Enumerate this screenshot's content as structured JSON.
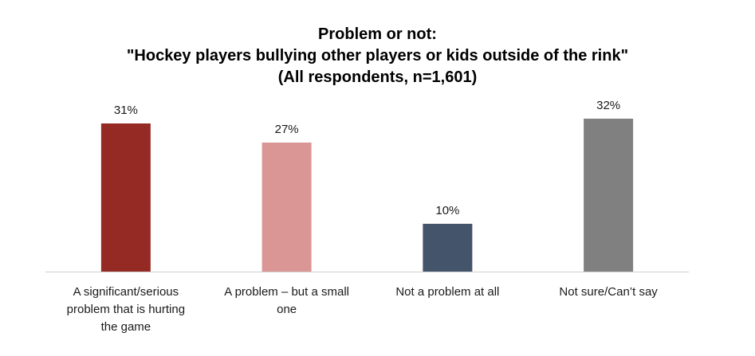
{
  "chart_data": {
    "type": "bar",
    "title_lines": [
      "Problem or not:",
      "\"Hockey players bullying other players or kids outside of the rink\"",
      "(All respondents, n=1,601)"
    ],
    "categories": [
      "A significant/serious problem that is hurting the game",
      "A problem – but a small one",
      "Not a problem at all",
      "Not sure/Can’t say"
    ],
    "category_lines": [
      [
        "A significant/serious",
        "problem that is hurting",
        "the game"
      ],
      [
        "A problem – but a small",
        "one"
      ],
      [
        "Not a problem at all"
      ],
      [
        "Not sure/Can’t say"
      ]
    ],
    "values": [
      31,
      27,
      10,
      32
    ],
    "value_labels": [
      "31%",
      "27%",
      "10%",
      "32%"
    ],
    "colors": [
      "#952a25",
      "#d99694",
      "#44546a",
      "#808080"
    ],
    "ylim": [
      0,
      35
    ],
    "grid": false,
    "legend": "none"
  }
}
